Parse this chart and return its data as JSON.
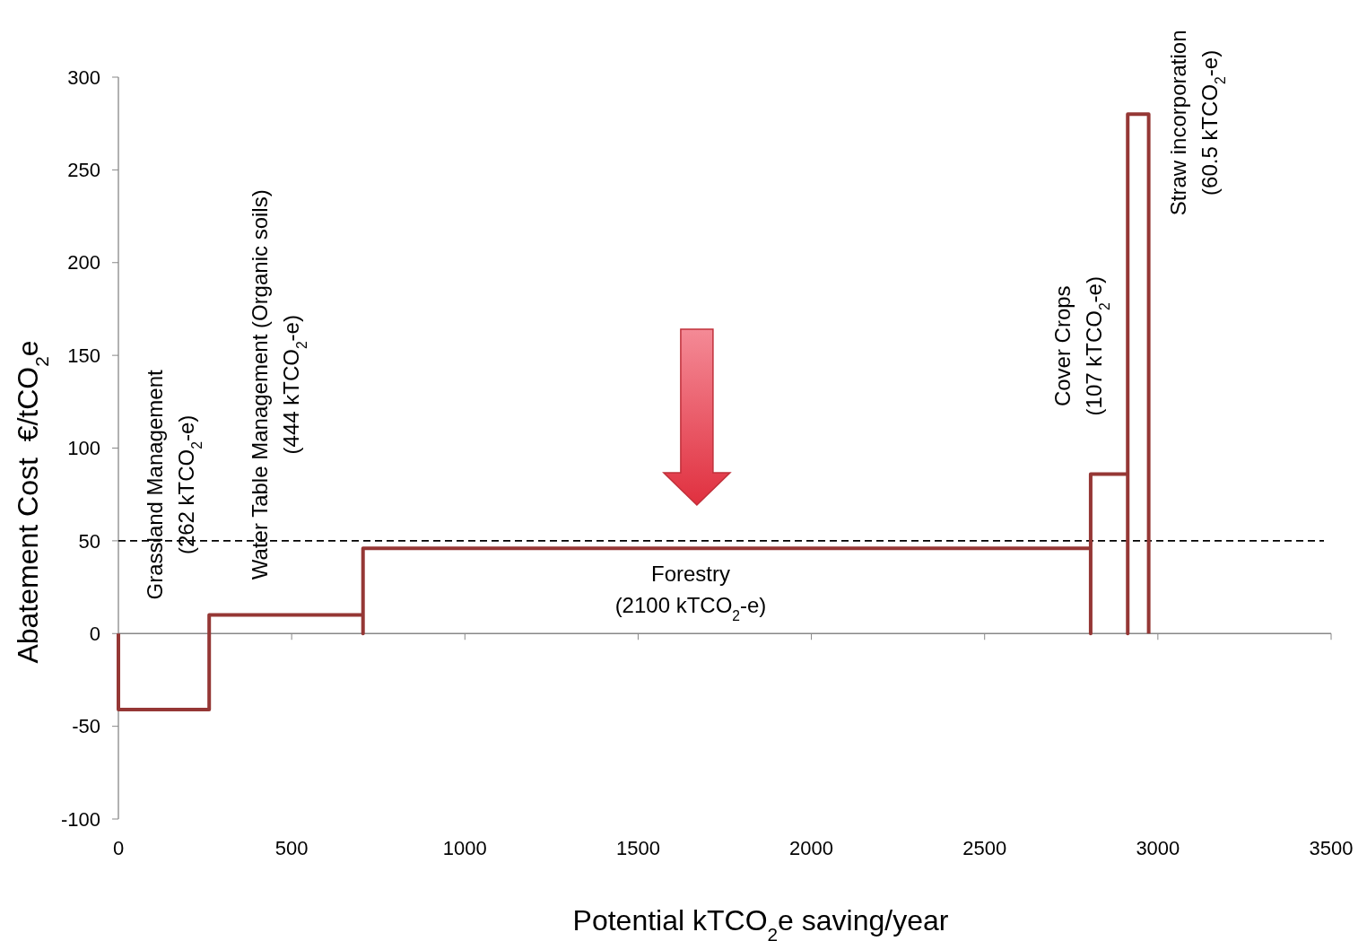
{
  "chart_data": {
    "type": "step",
    "xlabel": "Potential kTCO$_{2}$e saving/year",
    "ylabel": "Abatement Cost  €/tCO$_{2}$e",
    "x": [
      0,
      0,
      262,
      706,
      706,
      2806,
      2806,
      2913,
      2913,
      2973.5
    ],
    "values": [
      0,
      -41,
      10,
      0,
      46,
      0,
      86,
      0,
      280,
      0
    ],
    "color": "#953735",
    "xlim": [
      0,
      3500
    ],
    "xticks": [
      0,
      500,
      1000,
      1500,
      2000,
      2500,
      3000,
      3500
    ],
    "ylim": [
      -100,
      300
    ],
    "yticks": [
      -100,
      -50,
      0,
      50,
      100,
      150,
      200,
      250,
      300
    ],
    "ref_lines": [
      {
        "axis": "y",
        "value": 50,
        "line_style": "dashed",
        "color": "#000000"
      }
    ],
    "annotations": [
      "Grassland Management\n(262 kTCO$_{2}$-e)",
      "Water Table Management (Organic soils)\n(444 kTCO$_{2}$-e)",
      "Forestry\n(2100 kTCO$_{2}$-e)",
      "Cover Crops\n(107 kTCO$_{2}$-e)",
      "Straw incorporation\n(60.5 kTCO$_{2}$-e)"
    ]
  }
}
